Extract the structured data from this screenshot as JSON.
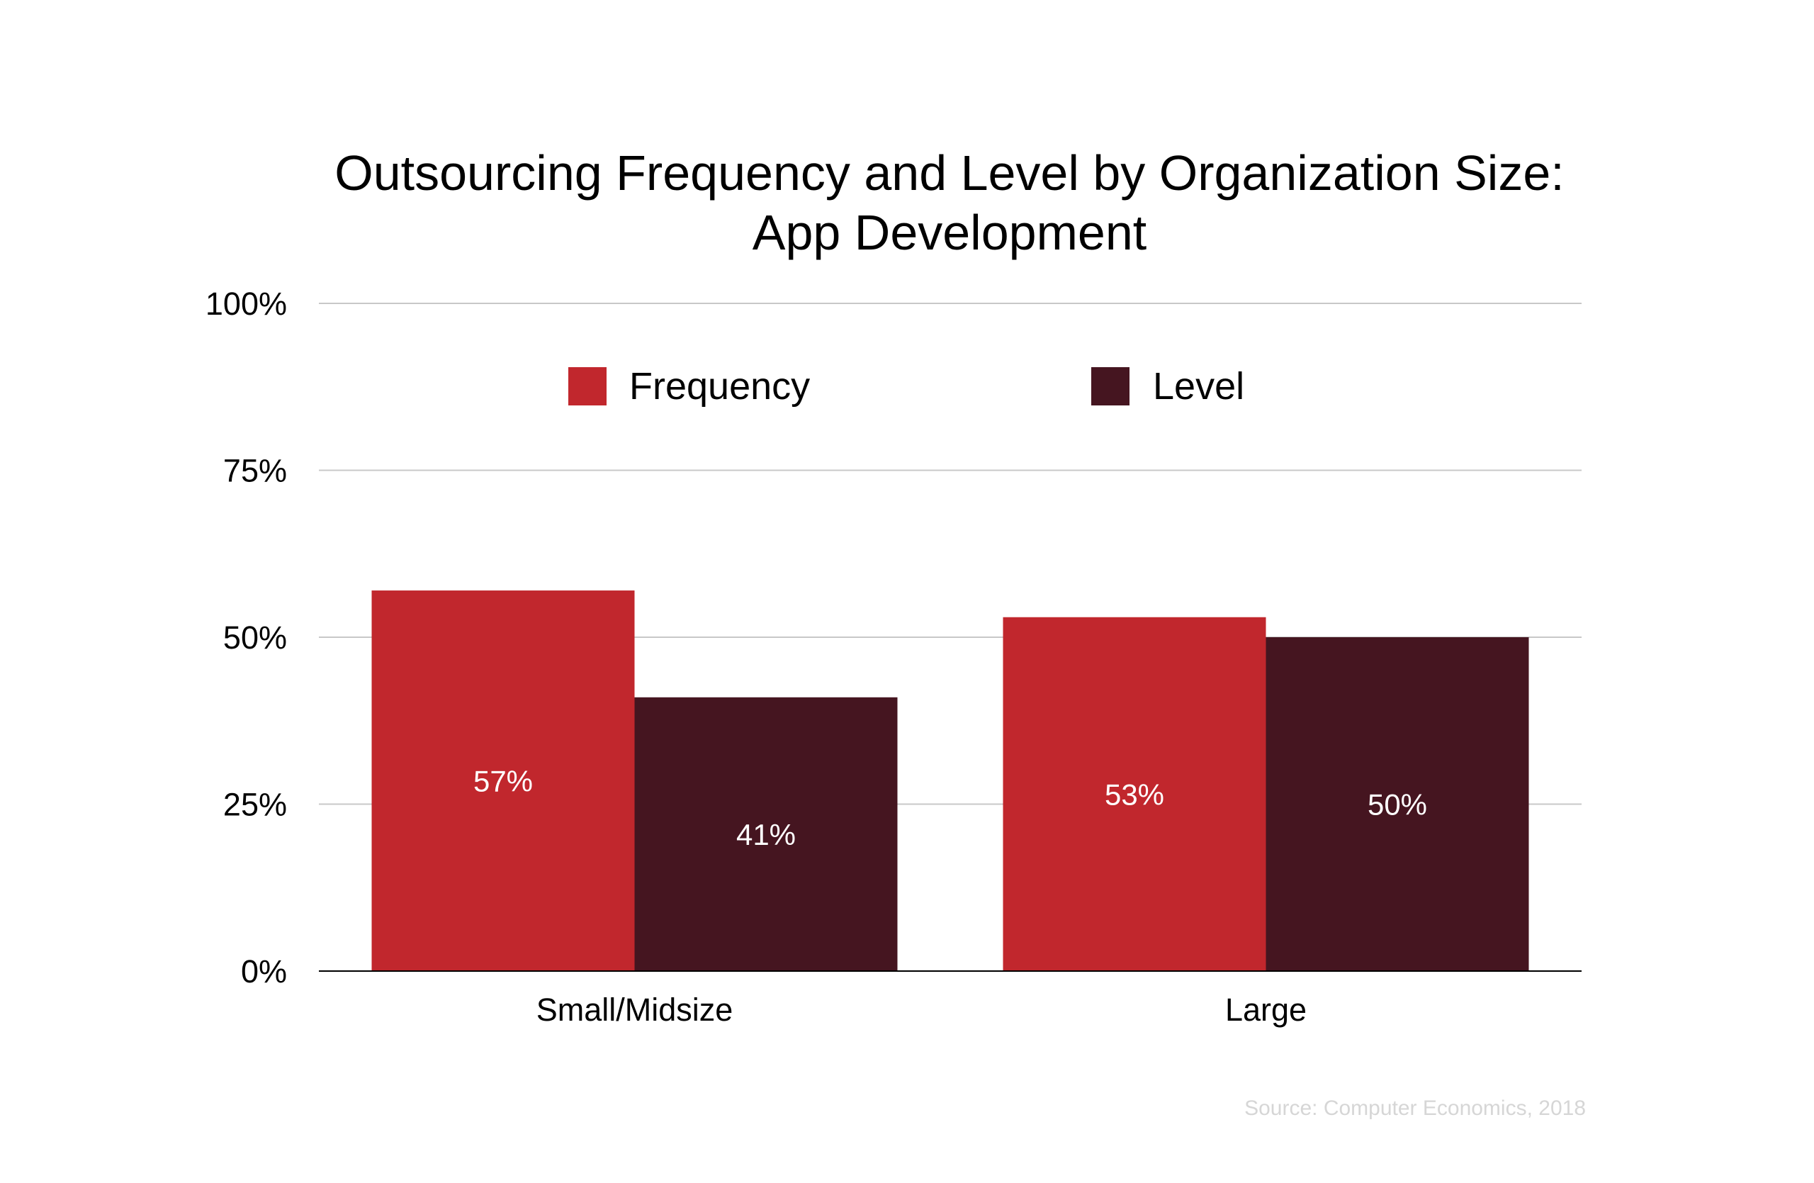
{
  "chart_data": {
    "type": "bar",
    "title": "Outsourcing Frequency and Level by Organization Size:",
    "subtitle": "App Development",
    "categories": [
      "Small/Midsize",
      "Large"
    ],
    "series": [
      {
        "name": "Frequency",
        "color": "#c1272d",
        "values": [
          57,
          53
        ],
        "labels": [
          "57%",
          "53%"
        ]
      },
      {
        "name": "Level",
        "color": "#451520",
        "values": [
          41,
          50
        ],
        "labels": [
          "41%",
          "50%"
        ]
      }
    ],
    "ylim": [
      0,
      100
    ],
    "yticks": [
      0,
      25,
      50,
      75,
      100
    ],
    "ytick_labels": [
      "0%",
      "25%",
      "50%",
      "75%",
      "100%"
    ],
    "xlabel": "",
    "ylabel": "",
    "grid": true,
    "legend_position": "top-center",
    "source": "Source: Computer Economics, 2018"
  }
}
